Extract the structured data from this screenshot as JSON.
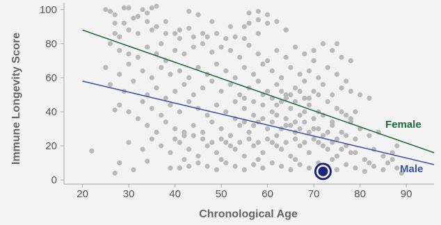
{
  "chart_data": {
    "type": "scatter",
    "xlabel": "Chronological Age",
    "ylabel": "Immune Longevity Score",
    "xlim": [
      16,
      96
    ],
    "ylim": [
      -2,
      104
    ],
    "x_ticks": [
      20,
      30,
      40,
      50,
      60,
      70,
      80,
      90
    ],
    "y_ticks": [
      0,
      20,
      40,
      60,
      80,
      100
    ],
    "grid": false,
    "colors": {
      "points": "#b9b9b9",
      "female_line": "#1f6b3a",
      "male_line": "#3a55a0",
      "highlight": "#1a237e",
      "background": "#f3f3f3"
    },
    "series": [
      {
        "name": "Female",
        "type": "line",
        "x": [
          20,
          96
        ],
        "y": [
          88,
          16
        ]
      },
      {
        "name": "Male",
        "type": "line",
        "x": [
          20,
          96
        ],
        "y": [
          58,
          9
        ]
      }
    ],
    "highlighted_point": {
      "x": 72,
      "y": 5
    },
    "points": [
      [
        22,
        17
      ],
      [
        27,
        4
      ],
      [
        28,
        10
      ],
      [
        25,
        100
      ],
      [
        26,
        99
      ],
      [
        27,
        97
      ],
      [
        29,
        101
      ],
      [
        30,
        101
      ],
      [
        33,
        100
      ],
      [
        35,
        101
      ],
      [
        36,
        102
      ],
      [
        34,
        98
      ],
      [
        32,
        96
      ],
      [
        27,
        92
      ],
      [
        29,
        92
      ],
      [
        31,
        95
      ],
      [
        34,
        93
      ],
      [
        36,
        90
      ],
      [
        38,
        93
      ],
      [
        27,
        86
      ],
      [
        28,
        84
      ],
      [
        30,
        88
      ],
      [
        32,
        86
      ],
      [
        35,
        88
      ],
      [
        38,
        86
      ],
      [
        40,
        86
      ],
      [
        41,
        88
      ],
      [
        43,
        89
      ],
      [
        41,
        83
      ],
      [
        44,
        84
      ],
      [
        46,
        86
      ],
      [
        47,
        84
      ],
      [
        49,
        86
      ],
      [
        51,
        83
      ],
      [
        53,
        84
      ],
      [
        55,
        83
      ],
      [
        58,
        86
      ],
      [
        55,
        90
      ],
      [
        56,
        92
      ],
      [
        58,
        94
      ],
      [
        60,
        92
      ],
      [
        56,
        98
      ],
      [
        58,
        99
      ],
      [
        60,
        97
      ],
      [
        62,
        93
      ],
      [
        64,
        88
      ],
      [
        52,
        90
      ],
      [
        48,
        93
      ],
      [
        45,
        97
      ],
      [
        43,
        99
      ],
      [
        26,
        80
      ],
      [
        28,
        76
      ],
      [
        30,
        74
      ],
      [
        32,
        72
      ],
      [
        34,
        78
      ],
      [
        37,
        80
      ],
      [
        36,
        74
      ],
      [
        38,
        70
      ],
      [
        40,
        76
      ],
      [
        42,
        74
      ],
      [
        44,
        78
      ],
      [
        46,
        80
      ],
      [
        48,
        75
      ],
      [
        50,
        78
      ],
      [
        52,
        76
      ],
      [
        54,
        72
      ],
      [
        56,
        79
      ],
      [
        58,
        74
      ],
      [
        60,
        70
      ],
      [
        62,
        76
      ],
      [
        64,
        72
      ],
      [
        66,
        78
      ],
      [
        68,
        74
      ],
      [
        70,
        76
      ],
      [
        72,
        80
      ],
      [
        70,
        70
      ],
      [
        74,
        76
      ],
      [
        76,
        72
      ],
      [
        78,
        70
      ],
      [
        75,
        80
      ],
      [
        25,
        66
      ],
      [
        28,
        62
      ],
      [
        30,
        68
      ],
      [
        33,
        64
      ],
      [
        35,
        60
      ],
      [
        37,
        66
      ],
      [
        39,
        62
      ],
      [
        41,
        64
      ],
      [
        43,
        60
      ],
      [
        45,
        66
      ],
      [
        47,
        62
      ],
      [
        49,
        68
      ],
      [
        51,
        64
      ],
      [
        53,
        60
      ],
      [
        55,
        66
      ],
      [
        57,
        62
      ],
      [
        59,
        68
      ],
      [
        61,
        64
      ],
      [
        63,
        60
      ],
      [
        65,
        66
      ],
      [
        67,
        62
      ],
      [
        69,
        64
      ],
      [
        71,
        60
      ],
      [
        73,
        66
      ],
      [
        75,
        62
      ],
      [
        77,
        58
      ],
      [
        26,
        56
      ],
      [
        29,
        52
      ],
      [
        31,
        58
      ],
      [
        34,
        50
      ],
      [
        36,
        54
      ],
      [
        38,
        48
      ],
      [
        40,
        52
      ],
      [
        42,
        56
      ],
      [
        44,
        50
      ],
      [
        46,
        54
      ],
      [
        48,
        58
      ],
      [
        50,
        52
      ],
      [
        52,
        56
      ],
      [
        54,
        50
      ],
      [
        56,
        54
      ],
      [
        58,
        58
      ],
      [
        60,
        52
      ],
      [
        62,
        56
      ],
      [
        64,
        50
      ],
      [
        66,
        54
      ],
      [
        68,
        58
      ],
      [
        70,
        52
      ],
      [
        72,
        56
      ],
      [
        74,
        50
      ],
      [
        76,
        54
      ],
      [
        78,
        52
      ],
      [
        80,
        50
      ],
      [
        82,
        48
      ],
      [
        28,
        44
      ],
      [
        30,
        40
      ],
      [
        33,
        46
      ],
      [
        35,
        42
      ],
      [
        37,
        38
      ],
      [
        39,
        44
      ],
      [
        41,
        40
      ],
      [
        43,
        46
      ],
      [
        45,
        42
      ],
      [
        47,
        38
      ],
      [
        49,
        44
      ],
      [
        51,
        40
      ],
      [
        53,
        46
      ],
      [
        55,
        42
      ],
      [
        57,
        38
      ],
      [
        59,
        44
      ],
      [
        61,
        40
      ],
      [
        63,
        46
      ],
      [
        65,
        42
      ],
      [
        67,
        38
      ],
      [
        69,
        44
      ],
      [
        71,
        40
      ],
      [
        73,
        46
      ],
      [
        75,
        42
      ],
      [
        77,
        38
      ],
      [
        79,
        40
      ],
      [
        27,
        41
      ],
      [
        32,
        36
      ],
      [
        34,
        32
      ],
      [
        36,
        28
      ],
      [
        38,
        34
      ],
      [
        40,
        30
      ],
      [
        42,
        26
      ],
      [
        44,
        32
      ],
      [
        46,
        28
      ],
      [
        48,
        34
      ],
      [
        50,
        30
      ],
      [
        52,
        26
      ],
      [
        54,
        32
      ],
      [
        56,
        28
      ],
      [
        58,
        34
      ],
      [
        60,
        30
      ],
      [
        62,
        26
      ],
      [
        64,
        32
      ],
      [
        66,
        28
      ],
      [
        68,
        34
      ],
      [
        70,
        30
      ],
      [
        72,
        26
      ],
      [
        74,
        32
      ],
      [
        76,
        28
      ],
      [
        78,
        34
      ],
      [
        80,
        30
      ],
      [
        82,
        26
      ],
      [
        84,
        28
      ],
      [
        30,
        22
      ],
      [
        33,
        18
      ],
      [
        35,
        24
      ],
      [
        37,
        20
      ],
      [
        39,
        16
      ],
      [
        41,
        22
      ],
      [
        43,
        18
      ],
      [
        45,
        14
      ],
      [
        47,
        20
      ],
      [
        49,
        16
      ],
      [
        51,
        22
      ],
      [
        53,
        18
      ],
      [
        55,
        14
      ],
      [
        57,
        20
      ],
      [
        59,
        16
      ],
      [
        61,
        22
      ],
      [
        63,
        18
      ],
      [
        65,
        14
      ],
      [
        67,
        20
      ],
      [
        69,
        16
      ],
      [
        71,
        22
      ],
      [
        73,
        18
      ],
      [
        75,
        14
      ],
      [
        77,
        20
      ],
      [
        79,
        16
      ],
      [
        81,
        12
      ],
      [
        83,
        18
      ],
      [
        85,
        14
      ],
      [
        87,
        16
      ],
      [
        88,
        20
      ],
      [
        41,
        7
      ],
      [
        43,
        8
      ],
      [
        45,
        10
      ],
      [
        47,
        8
      ],
      [
        49,
        6
      ],
      [
        51,
        10
      ],
      [
        53,
        8
      ],
      [
        55,
        6
      ],
      [
        57,
        9
      ],
      [
        59,
        7
      ],
      [
        61,
        10
      ],
      [
        63,
        8
      ],
      [
        65,
        6
      ],
      [
        67,
        9
      ],
      [
        69,
        7
      ],
      [
        71,
        10
      ],
      [
        73,
        8
      ],
      [
        75,
        6
      ],
      [
        77,
        9
      ],
      [
        79,
        7
      ],
      [
        81,
        5
      ],
      [
        83,
        8
      ],
      [
        85,
        6
      ],
      [
        86,
        10
      ],
      [
        87,
        12
      ],
      [
        88,
        7
      ],
      [
        89,
        4
      ],
      [
        39,
        7
      ],
      [
        34,
        11
      ],
      [
        31,
        6
      ],
      [
        42,
        12
      ],
      [
        50,
        12
      ],
      [
        58,
        12
      ],
      [
        66,
        12
      ],
      [
        74,
        12
      ],
      [
        82,
        10
      ],
      [
        62,
        38
      ],
      [
        64,
        36
      ],
      [
        66,
        34
      ],
      [
        68,
        40
      ],
      [
        70,
        36
      ],
      [
        72,
        38
      ],
      [
        74,
        34
      ],
      [
        76,
        40
      ],
      [
        78,
        36
      ],
      [
        62,
        44
      ],
      [
        64,
        48
      ],
      [
        66,
        46
      ],
      [
        68,
        48
      ],
      [
        55,
        48
      ],
      [
        57,
        46
      ],
      [
        59,
        50
      ],
      [
        61,
        48
      ],
      [
        63,
        52
      ],
      [
        65,
        50
      ],
      [
        67,
        52
      ],
      [
        69,
        48
      ],
      [
        71,
        50
      ],
      [
        53,
        36
      ],
      [
        55,
        34
      ],
      [
        57,
        32
      ],
      [
        59,
        36
      ],
      [
        61,
        34
      ],
      [
        63,
        30
      ],
      [
        65,
        32
      ],
      [
        67,
        30
      ],
      [
        69,
        28
      ],
      [
        71,
        30
      ],
      [
        73,
        28
      ],
      [
        75,
        24
      ],
      [
        77,
        26
      ],
      [
        79,
        24
      ],
      [
        68,
        22
      ],
      [
        70,
        24
      ],
      [
        72,
        20
      ],
      [
        74,
        22
      ],
      [
        76,
        18
      ],
      [
        78,
        16
      ],
      [
        66,
        24
      ],
      [
        64,
        22
      ],
      [
        62,
        20
      ],
      [
        60,
        24
      ],
      [
        58,
        22
      ],
      [
        56,
        24
      ],
      [
        54,
        22
      ],
      [
        52,
        20
      ],
      [
        50,
        24
      ],
      [
        48,
        22
      ],
      [
        46,
        24
      ],
      [
        44,
        26
      ],
      [
        42,
        28
      ],
      [
        40,
        24
      ]
    ]
  },
  "labels": {
    "female": "Female",
    "male": "Male"
  }
}
